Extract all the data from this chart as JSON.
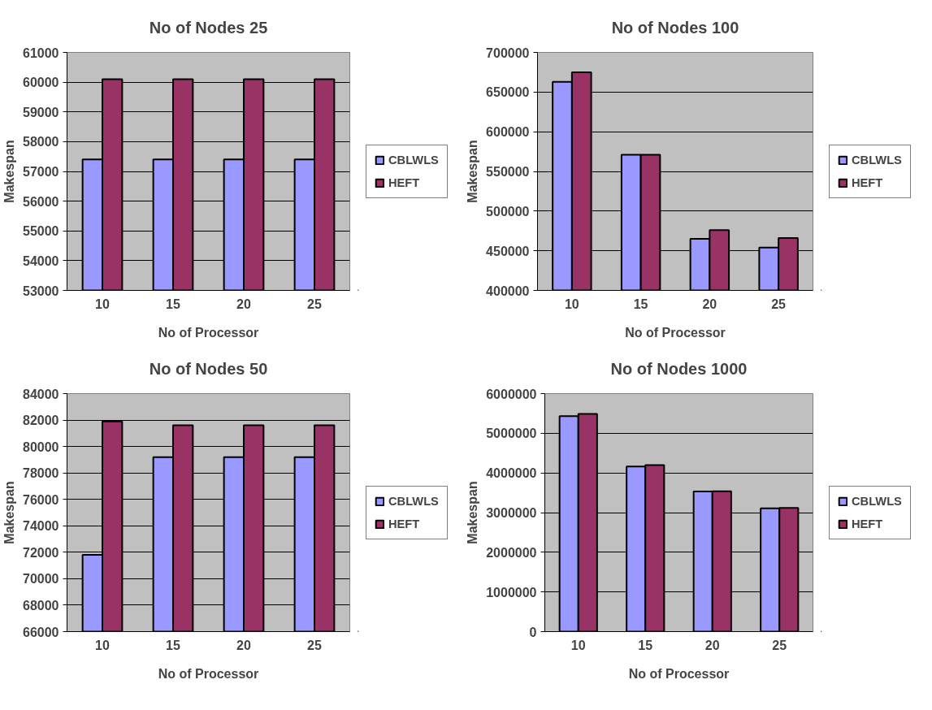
{
  "chart_data": [
    {
      "type": "bar",
      "title": "No of Nodes 25",
      "xlabel": "No of Processor",
      "ylabel": "Makespan",
      "categories": [
        "10",
        "15",
        "20",
        "25"
      ],
      "series": [
        {
          "name": "CBLWLS",
          "color": "#9999ff",
          "values": [
            57400,
            57400,
            57400,
            57400
          ]
        },
        {
          "name": "HEFT",
          "color": "#993366",
          "values": [
            60100,
            60100,
            60100,
            60100
          ]
        }
      ],
      "ylim": [
        53000,
        61000
      ],
      "yticks": [
        53000,
        54000,
        55000,
        56000,
        57000,
        58000,
        59000,
        60000,
        61000
      ],
      "grid": "y",
      "legend": "right"
    },
    {
      "type": "bar",
      "title": "No of Nodes 100",
      "xlabel": "No of Processor",
      "ylabel": "Makespan",
      "categories": [
        "10",
        "15",
        "20",
        "25"
      ],
      "series": [
        {
          "name": "CBLWLS",
          "color": "#9999ff",
          "values": [
            663000,
            571000,
            465000,
            454000
          ]
        },
        {
          "name": "HEFT",
          "color": "#993366",
          "values": [
            675000,
            571000,
            476000,
            466000
          ]
        }
      ],
      "ylim": [
        400000,
        700000
      ],
      "yticks": [
        400000,
        450000,
        500000,
        550000,
        600000,
        650000,
        700000
      ],
      "grid": "y",
      "legend": "right"
    },
    {
      "type": "bar",
      "title": "No of Nodes 50",
      "xlabel": "No of Processor",
      "ylabel": "Makespan",
      "categories": [
        "10",
        "15",
        "20",
        "25"
      ],
      "series": [
        {
          "name": "CBLWLS",
          "color": "#9999ff",
          "values": [
            71800,
            79200,
            79200,
            79200
          ]
        },
        {
          "name": "HEFT",
          "color": "#993366",
          "values": [
            81900,
            81600,
            81600,
            81600
          ]
        }
      ],
      "ylim": [
        66000,
        84000
      ],
      "yticks": [
        66000,
        68000,
        70000,
        72000,
        74000,
        76000,
        78000,
        80000,
        82000,
        84000
      ],
      "grid": "y",
      "legend": "right"
    },
    {
      "type": "bar",
      "title": "No of Nodes 1000",
      "xlabel": "No of Processor",
      "ylabel": "Makespan",
      "categories": [
        "10",
        "15",
        "20",
        "25"
      ],
      "series": [
        {
          "name": "CBLWLS",
          "color": "#9999ff",
          "values": [
            5430000,
            4160000,
            3530000,
            3110000
          ]
        },
        {
          "name": "HEFT",
          "color": "#993366",
          "values": [
            5490000,
            4200000,
            3540000,
            3120000
          ]
        }
      ],
      "ylim": [
        0,
        6000000
      ],
      "yticks": [
        0,
        1000000,
        2000000,
        3000000,
        4000000,
        5000000,
        6000000
      ],
      "grid": "y",
      "legend": "right"
    }
  ]
}
